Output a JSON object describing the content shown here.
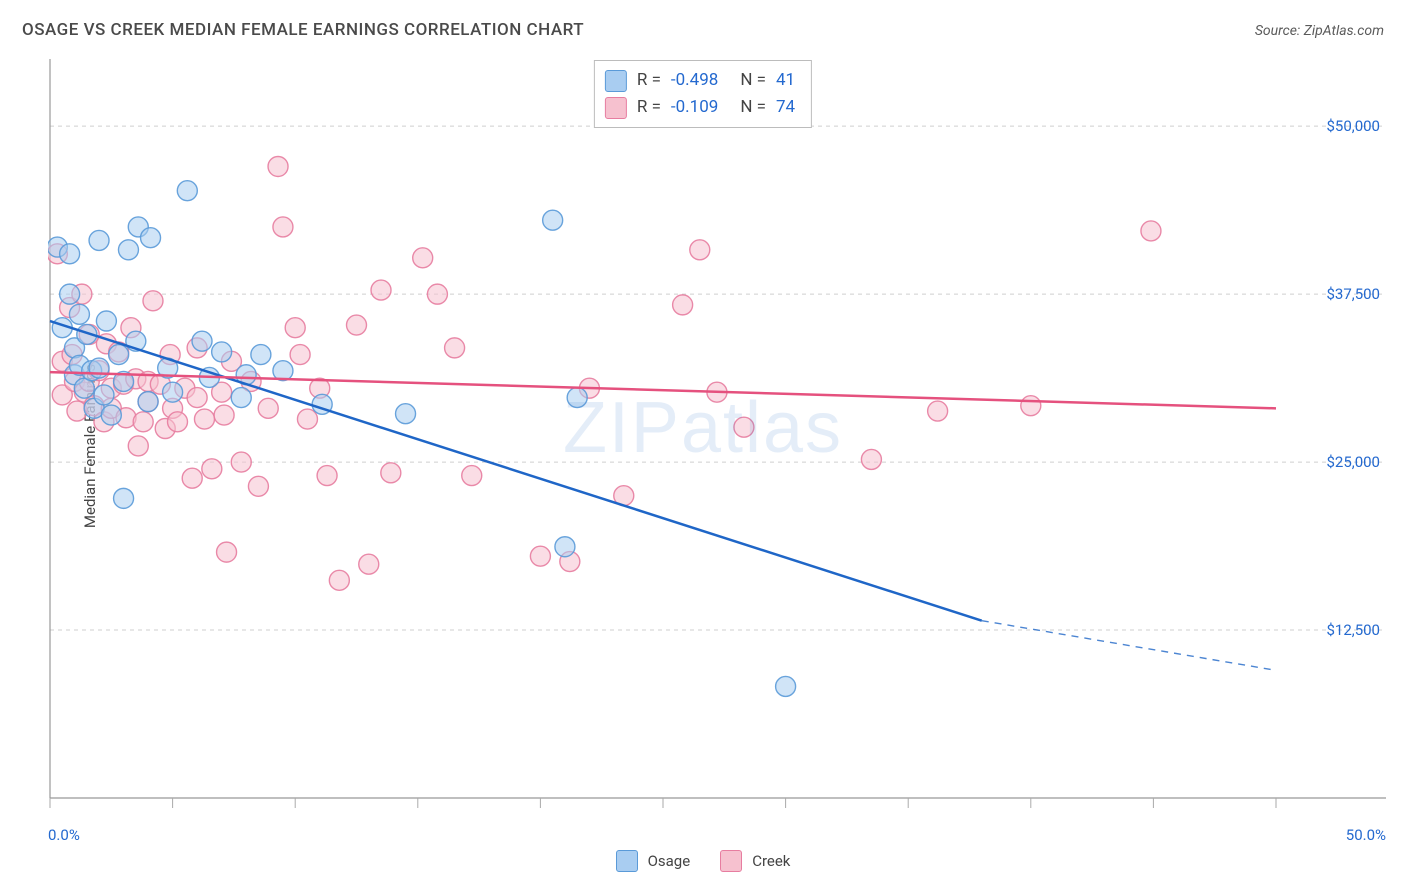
{
  "title": "OSAGE VS CREEK MEDIAN FEMALE EARNINGS CORRELATION CHART",
  "source_label": "Source: ZipAtlas.com",
  "ylabel": "Median Female Earnings",
  "watermark": "ZIPatlas",
  "chart": {
    "type": "scatter",
    "background_color": "#ffffff",
    "grid_color": "#cfcfcf",
    "axis_color": "#999999",
    "tick_color": "#aaaaaa",
    "label_color": "#2469cf",
    "xlim": [
      0,
      50
    ],
    "ylim": [
      0,
      55000
    ],
    "xticks_major": [
      0,
      5,
      10,
      15,
      20,
      25,
      30,
      35,
      40,
      45,
      50
    ],
    "yticks": [
      {
        "v": 12500,
        "label": "$12,500"
      },
      {
        "v": 25000,
        "label": "$25,000"
      },
      {
        "v": 37500,
        "label": "$37,500"
      },
      {
        "v": 50000,
        "label": "$50,000"
      }
    ],
    "xmin_label": "0.0%",
    "xmax_label": "50.0%",
    "marker_radius": 10,
    "marker_opacity": 0.55,
    "line_width": 2.5,
    "series": [
      {
        "name": "Osage",
        "color_fill": "#a9cdf1",
        "color_stroke": "#5a9ad8",
        "trend_color": "#1f66c7",
        "R": "-0.498",
        "N": "41",
        "trend": {
          "x1": 0,
          "y1": 35500,
          "x2_solid": 38,
          "y2_solid": 13200,
          "x2": 50,
          "y2": 9500
        },
        "points": [
          [
            0.3,
            41000
          ],
          [
            0.5,
            35000
          ],
          [
            0.8,
            40500
          ],
          [
            0.8,
            37500
          ],
          [
            1.0,
            33500
          ],
          [
            1.0,
            31500
          ],
          [
            1.2,
            36000
          ],
          [
            1.2,
            32200
          ],
          [
            1.4,
            30500
          ],
          [
            1.5,
            34500
          ],
          [
            1.7,
            31800
          ],
          [
            1.8,
            29000
          ],
          [
            2.0,
            41500
          ],
          [
            2.0,
            32000
          ],
          [
            2.2,
            30000
          ],
          [
            2.3,
            35500
          ],
          [
            2.5,
            28500
          ],
          [
            2.8,
            33000
          ],
          [
            3.0,
            31000
          ],
          [
            3.0,
            22300
          ],
          [
            3.2,
            40800
          ],
          [
            3.5,
            34000
          ],
          [
            3.6,
            42500
          ],
          [
            4.0,
            29500
          ],
          [
            4.1,
            41700
          ],
          [
            4.8,
            32000
          ],
          [
            5.0,
            30200
          ],
          [
            5.6,
            45200
          ],
          [
            6.2,
            34000
          ],
          [
            6.5,
            31300
          ],
          [
            7.0,
            33200
          ],
          [
            7.8,
            29800
          ],
          [
            8.0,
            31500
          ],
          [
            8.6,
            33000
          ],
          [
            9.5,
            31800
          ],
          [
            11.1,
            29300
          ],
          [
            14.5,
            28600
          ],
          [
            20.5,
            43000
          ],
          [
            21.0,
            18700
          ],
          [
            30.0,
            8300
          ],
          [
            21.5,
            29800
          ]
        ]
      },
      {
        "name": "Creek",
        "color_fill": "#f6c1cf",
        "color_stroke": "#e77da0",
        "trend_color": "#e5517e",
        "R": "-0.109",
        "N": "74",
        "trend": {
          "x1": 0,
          "y1": 31700,
          "x2_solid": 50,
          "y2_solid": 29000,
          "x2": 50,
          "y2": 29000
        },
        "points": [
          [
            0.3,
            40500
          ],
          [
            0.5,
            32500
          ],
          [
            0.5,
            30000
          ],
          [
            0.8,
            36500
          ],
          [
            0.9,
            33000
          ],
          [
            1.0,
            31000
          ],
          [
            1.1,
            28800
          ],
          [
            1.3,
            37500
          ],
          [
            1.4,
            30200
          ],
          [
            1.6,
            31000
          ],
          [
            1.6,
            34500
          ],
          [
            1.8,
            29200
          ],
          [
            2.0,
            31800
          ],
          [
            2.2,
            28000
          ],
          [
            2.3,
            33800
          ],
          [
            2.5,
            30500
          ],
          [
            2.5,
            29000
          ],
          [
            2.8,
            33200
          ],
          [
            3.0,
            30800
          ],
          [
            3.1,
            28300
          ],
          [
            3.3,
            35000
          ],
          [
            3.5,
            31200
          ],
          [
            3.6,
            26200
          ],
          [
            3.8,
            28000
          ],
          [
            4.0,
            31000
          ],
          [
            4.0,
            29500
          ],
          [
            4.2,
            37000
          ],
          [
            4.5,
            30800
          ],
          [
            4.7,
            27500
          ],
          [
            4.9,
            33000
          ],
          [
            5.0,
            29000
          ],
          [
            5.2,
            28000
          ],
          [
            5.5,
            30500
          ],
          [
            5.8,
            23800
          ],
          [
            6.0,
            29800
          ],
          [
            6.0,
            33500
          ],
          [
            6.3,
            28200
          ],
          [
            6.6,
            24500
          ],
          [
            7.0,
            30200
          ],
          [
            7.1,
            28500
          ],
          [
            7.4,
            32500
          ],
          [
            7.8,
            25000
          ],
          [
            8.2,
            31000
          ],
          [
            8.5,
            23200
          ],
          [
            8.9,
            29000
          ],
          [
            9.3,
            47000
          ],
          [
            9.5,
            42500
          ],
          [
            10.0,
            35000
          ],
          [
            10.2,
            33000
          ],
          [
            10.5,
            28200
          ],
          [
            11.0,
            30500
          ],
          [
            11.3,
            24000
          ],
          [
            11.8,
            16200
          ],
          [
            12.5,
            35200
          ],
          [
            13.5,
            37800
          ],
          [
            13.9,
            24200
          ],
          [
            15.2,
            40200
          ],
          [
            15.8,
            37500
          ],
          [
            16.5,
            33500
          ],
          [
            17.2,
            24000
          ],
          [
            20.0,
            18000
          ],
          [
            21.2,
            17600
          ],
          [
            22.0,
            30500
          ],
          [
            23.4,
            22500
          ],
          [
            25.8,
            36700
          ],
          [
            26.5,
            40800
          ],
          [
            27.2,
            30200
          ],
          [
            28.3,
            27600
          ],
          [
            33.5,
            25200
          ],
          [
            36.2,
            28800
          ],
          [
            40.0,
            29200
          ],
          [
            44.9,
            42200
          ],
          [
            7.2,
            18300
          ],
          [
            13.0,
            17400
          ]
        ]
      }
    ]
  },
  "legend_bottom": [
    {
      "label": "Osage",
      "fill": "#a9cdf1",
      "stroke": "#5a9ad8"
    },
    {
      "label": "Creek",
      "fill": "#f6c1cf",
      "stroke": "#e77da0"
    }
  ]
}
